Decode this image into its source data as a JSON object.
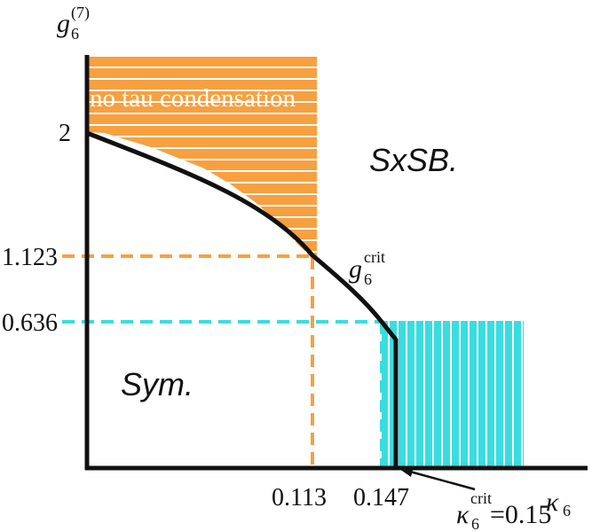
{
  "chart_data": {
    "type": "phase-diagram",
    "x_axis_label": "κ",
    "x_axis_label_sub": "6",
    "y_axis_label": "g",
    "y_axis_label_sub": "6",
    "y_axis_label_sup": "(7)",
    "y_ticks": [
      {
        "label": "2",
        "value": 2
      },
      {
        "label": "1.123",
        "value": 1.123
      },
      {
        "label": "0.636",
        "value": 0.636
      }
    ],
    "x_ticks": [
      {
        "label": "0.113",
        "value": 0.113
      },
      {
        "label": "0.147",
        "value": 0.147
      }
    ],
    "critical_line_label": "g",
    "critical_line_label_sub": "6",
    "critical_line_label_sup": "crit",
    "kappa_crit_label": "κ",
    "kappa_crit_sub": "6",
    "kappa_crit_sup": "crit",
    "kappa_crit_value_text": "=0.15",
    "kappa_crit": 0.15,
    "region_labels": {
      "broken": "SxSB.",
      "symmetric": "Sym.",
      "no_condensation": "no tau condensation"
    },
    "critical_curve": [
      [
        0,
        2.0
      ],
      [
        0.03,
        1.82
      ],
      [
        0.06,
        1.62
      ],
      [
        0.09,
        1.37
      ],
      [
        0.113,
        1.123
      ],
      [
        0.13,
        0.9
      ],
      [
        0.147,
        0.636
      ],
      [
        0.15,
        0.6
      ]
    ],
    "colors": {
      "orange": "#f7a040",
      "cyan": "#39dde0",
      "line": "#111111"
    }
  }
}
